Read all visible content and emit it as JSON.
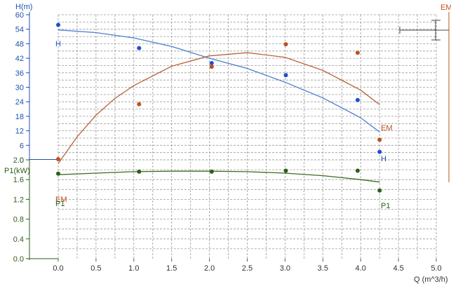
{
  "chart_data": {
    "type": "line",
    "title": "",
    "xlabel": "Q (m^3/h)",
    "x_ticks": [
      "0.0",
      "0.5",
      "1.0",
      "1.5",
      "2.0",
      "2.5",
      "3.0",
      "3.5",
      "4.0",
      "4.5",
      "5.0"
    ],
    "xlim": [
      0,
      5
    ],
    "grid": true,
    "axes": {
      "H": {
        "label": "H(m)",
        "ylim": [
          0,
          60
        ],
        "ticks": [
          "0",
          "6",
          "12",
          "18",
          "24",
          "30",
          "36",
          "42",
          "48",
          "54",
          "60"
        ],
        "color": "#1f4fb0"
      },
      "EM": {
        "label": "EM",
        "color": "#c0501e"
      },
      "P1": {
        "label": "P1(kW)",
        "ylim": [
          0,
          2
        ],
        "ticks": [
          "0.0",
          "0.4",
          "0.8",
          "1.2",
          "1.6",
          "2.0"
        ],
        "color": "#2f5e1c"
      }
    },
    "series": [
      {
        "name": "H",
        "axis": "H",
        "color": "#4a7fd0",
        "dot_color": "#1f4fd0",
        "curve_x": [
          0,
          0.5,
          1,
          1.5,
          2,
          2.5,
          3,
          3.5,
          4,
          4.25
        ],
        "curve_y": [
          53.7,
          52.6,
          50.4,
          46.9,
          42,
          37.8,
          32.1,
          25.6,
          17.4,
          11.5
        ],
        "points_x": [
          0,
          1.07,
          2.03,
          3.01,
          3.96,
          4.25
        ],
        "points_y": [
          55.8,
          46.2,
          40,
          35,
          24.7,
          3.3
        ],
        "end_label": "H",
        "start_label": "H"
      },
      {
        "name": "EM",
        "axis": "H",
        "color": "#b8653a",
        "dot_color": "#c0501e",
        "curve_x": [
          0,
          0.25,
          0.5,
          0.75,
          1,
          1.5,
          2,
          2.5,
          3,
          3.5,
          4,
          4.25
        ],
        "curve_y": [
          -1.5,
          9.5,
          18.5,
          25.4,
          30.7,
          38.7,
          43,
          44.3,
          42.4,
          37,
          28.8,
          22.8
        ],
        "points_x": [
          0,
          1.07,
          2.03,
          3.01,
          3.96,
          4.25
        ],
        "points_y": [
          0.3,
          23,
          38.5,
          47.8,
          44.3,
          8.3
        ],
        "end_label": "EM",
        "start_label": "EM"
      },
      {
        "name": "P1",
        "axis": "P1",
        "color": "#3d6b22",
        "dot_color": "#2f5e1c",
        "curve_x": [
          0,
          0.5,
          1,
          1.5,
          2,
          2.5,
          3,
          3.5,
          4,
          4.25
        ],
        "curve_y": [
          1.7,
          1.73,
          1.76,
          1.77,
          1.77,
          1.76,
          1.73,
          1.68,
          1.6,
          1.55
        ],
        "points_x": [
          0,
          1.07,
          2.03,
          3.01,
          3.96,
          4.25
        ],
        "points_y": [
          1.72,
          1.76,
          1.76,
          1.78,
          1.78,
          1.38
        ],
        "end_label": "P1",
        "start_label": "P1"
      }
    ]
  }
}
